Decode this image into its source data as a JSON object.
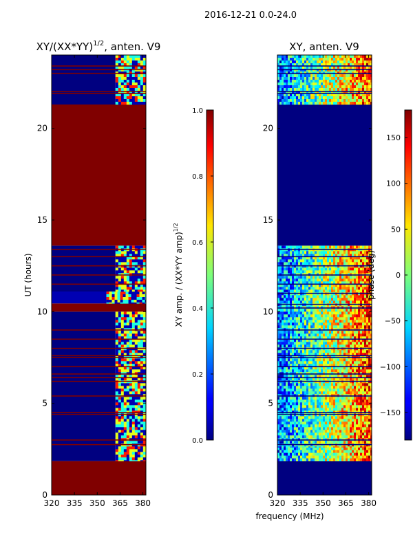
{
  "figure_title": "2016-12-21 0.0-24.0",
  "chart_data": [
    {
      "type": "heatmap",
      "title": "XY/(XX*YY)",
      "title_sup": "1/2",
      "title_suffix": ", anten. V9",
      "xlabel": "",
      "ylabel": "UT (hours)",
      "xlim": [
        320,
        382
      ],
      "ylim": [
        0,
        24
      ],
      "xticks": [
        "320",
        "335",
        "350",
        "365",
        "380"
      ],
      "xtick_values": [
        320,
        335,
        350,
        365,
        380
      ],
      "yticks": [
        "0",
        "5",
        "10",
        "15",
        "20"
      ],
      "ytick_values": [
        0,
        5,
        10,
        15,
        20
      ],
      "colormap": "jet",
      "colorbar": {
        "label": "XY amp. / (XX*YY amp)",
        "label_sup": "1/2",
        "range": [
          0.0,
          1.0
        ],
        "ticks": [
          "0.0",
          "0.2",
          "0.4",
          "0.6",
          "0.8",
          "1.0"
        ],
        "tick_values": [
          0.0,
          0.2,
          0.4,
          0.6,
          0.8,
          1.0
        ]
      },
      "regions": [
        {
          "t0": 0.0,
          "t1": 1.85,
          "f0": 320,
          "f1": 382,
          "value": 1.0
        },
        {
          "t0": 1.85,
          "t1": 10.0,
          "f0": 320,
          "f1": 362,
          "value": 0.0
        },
        {
          "t0": 1.85,
          "t1": 10.0,
          "f0": 362,
          "f1": 382,
          "value": 0.5,
          "pattern": "mixed"
        },
        {
          "t0": 10.0,
          "t1": 10.45,
          "f0": 320,
          "f1": 382,
          "value": 1.0
        },
        {
          "t0": 10.45,
          "t1": 11.1,
          "f0": 320,
          "f1": 356,
          "value": 0.05
        },
        {
          "t0": 10.45,
          "t1": 11.1,
          "f0": 356,
          "f1": 382,
          "value": 0.7,
          "pattern": "mixed"
        },
        {
          "t0": 11.1,
          "t1": 13.6,
          "f0": 320,
          "f1": 362,
          "value": 0.0
        },
        {
          "t0": 11.1,
          "t1": 13.6,
          "f0": 362,
          "f1": 382,
          "value": 0.5,
          "pattern": "mixed"
        },
        {
          "t0": 13.6,
          "t1": 21.3,
          "f0": 320,
          "f1": 382,
          "value": 1.0
        },
        {
          "t0": 21.3,
          "t1": 24.0,
          "f0": 320,
          "f1": 362,
          "value": 0.0
        },
        {
          "t0": 21.3,
          "t1": 24.0,
          "f0": 362,
          "f1": 382,
          "value": 0.5,
          "pattern": "mixed"
        }
      ],
      "flag_lines_ut": [
        2.75,
        3.0,
        4.4,
        4.5,
        5.4,
        6.2,
        6.4,
        6.6,
        7.0,
        7.5,
        7.6,
        8.0,
        8.5,
        9.0,
        11.5,
        12.0,
        12.5,
        13.0,
        13.4,
        21.9,
        22.0,
        23.0,
        23.2,
        23.4
      ]
    },
    {
      "type": "heatmap",
      "title": "XY, anten. V9",
      "xlabel": "frequency (MHz)",
      "ylabel": "",
      "xlim": [
        320,
        382
      ],
      "ylim": [
        0,
        24
      ],
      "xticks": [
        "320",
        "335",
        "350",
        "365",
        "380"
      ],
      "xtick_values": [
        320,
        335,
        350,
        365,
        380
      ],
      "yticks": [
        "0",
        "5",
        "10",
        "15",
        "20"
      ],
      "ytick_values": [
        0,
        5,
        10,
        15,
        20
      ],
      "colormap": "jet",
      "colorbar": {
        "label": "phase (deg)",
        "range": [
          -180,
          180
        ],
        "ticks": [
          "−150",
          "−100",
          "−50",
          "0",
          "50",
          "100",
          "150"
        ],
        "tick_values": [
          -150,
          -100,
          -50,
          0,
          50,
          100,
          150
        ]
      },
      "regions": [
        {
          "t0": 0.0,
          "t1": 1.85,
          "f0": 320,
          "f1": 382,
          "value": -180
        },
        {
          "t0": 1.85,
          "t1": 2.6,
          "f0": 320,
          "f1": 382,
          "value": 0,
          "pattern": "noisy"
        },
        {
          "t0": 2.6,
          "t1": 13.6,
          "f0": 320,
          "f1": 382,
          "value": 0,
          "pattern": "noisy"
        },
        {
          "t0": 13.6,
          "t1": 21.3,
          "f0": 320,
          "f1": 382,
          "value": -180
        },
        {
          "t0": 21.3,
          "t1": 24.0,
          "f0": 320,
          "f1": 382,
          "value": 0,
          "pattern": "noisy"
        }
      ],
      "flag_lines_ut": [
        2.75,
        3.0,
        4.4,
        4.5,
        5.4,
        6.2,
        6.4,
        6.6,
        7.0,
        7.5,
        7.6,
        8.0,
        8.5,
        9.0,
        10.2,
        10.4,
        11.0,
        11.5,
        12.0,
        12.5,
        13.0,
        13.4,
        21.9,
        22.0,
        23.0,
        23.2,
        23.4
      ]
    }
  ]
}
